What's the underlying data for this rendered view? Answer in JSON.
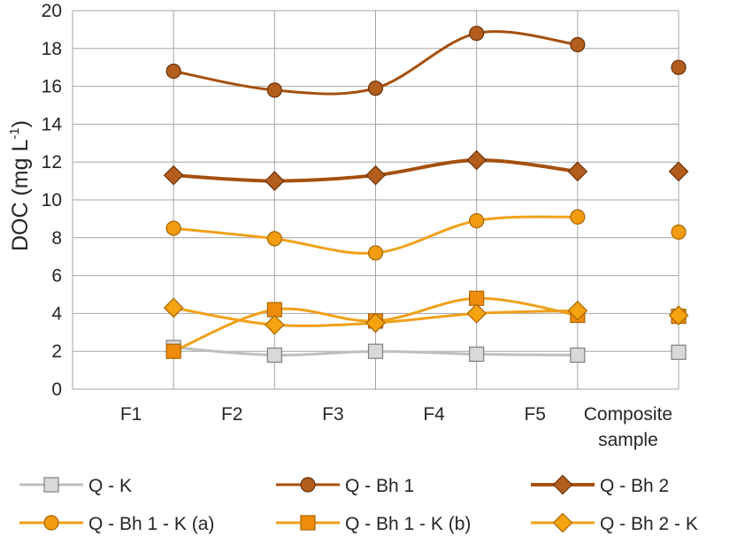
{
  "chart_data": {
    "type": "line",
    "categories": [
      "F1",
      "F2",
      "F3",
      "F4",
      "F5",
      "Composite sample"
    ],
    "category_labels": [
      [
        "F1"
      ],
      [
        "F2"
      ],
      [
        "F3"
      ],
      [
        "F4"
      ],
      [
        "F5"
      ],
      [
        "Composite",
        "sample"
      ]
    ],
    "ylabel": "DOC (mg L",
    "ylabel_sup": "-1",
    "ylabel_close": ")",
    "ylim": [
      0,
      20
    ],
    "yticks": [
      0,
      2,
      4,
      6,
      8,
      10,
      12,
      14,
      16,
      18,
      20
    ],
    "grid": true,
    "legend_position": "bottom",
    "series": [
      {
        "name": "Q - K",
        "values": [
          2.2,
          1.8,
          2.0,
          1.85,
          1.8,
          1.95
        ],
        "color": "#bfbfbf",
        "marker_fill": "#d9d9d9",
        "marker_stroke": "#7f7f7f",
        "marker": "square",
        "line_width": 3
      },
      {
        "name": "Q - Bh 1",
        "values": [
          16.8,
          15.8,
          15.9,
          18.8,
          18.2,
          17.0
        ],
        "color": "#a5500f",
        "marker_fill": "#b35d1c",
        "marker_stroke": "#6b3208",
        "marker": "circle",
        "line_width": 3
      },
      {
        "name": "Q - Bh 2",
        "values": [
          11.3,
          11.0,
          11.3,
          12.1,
          11.5,
          11.5
        ],
        "color": "#a5500f",
        "marker_fill": "#b35d1c",
        "marker_stroke": "#6b3208",
        "marker": "diamond",
        "line_width": 4
      },
      {
        "name": "Q - Bh 1 - K (a)",
        "values": [
          8.5,
          7.95,
          7.2,
          8.9,
          9.1,
          8.3
        ],
        "color": "#f0a11a",
        "marker_fill": "#f39c12",
        "marker_stroke": "#a86500",
        "marker": "circle",
        "line_width": 3
      },
      {
        "name": "Q - Bh 1 - K (b)",
        "values": [
          2.0,
          4.2,
          3.6,
          4.8,
          3.9,
          3.85
        ],
        "color": "#f0a11a",
        "marker_fill": "#f08c0c",
        "marker_stroke": "#a86500",
        "marker": "square",
        "line_width": 3
      },
      {
        "name": "Q - Bh 2 - K",
        "values": [
          4.3,
          3.4,
          3.5,
          4.0,
          4.15,
          3.9
        ],
        "color": "#f0a11a",
        "marker_fill": "#f5a30f",
        "marker_stroke": "#a86500",
        "marker": "diamond",
        "line_width": 3
      }
    ]
  }
}
